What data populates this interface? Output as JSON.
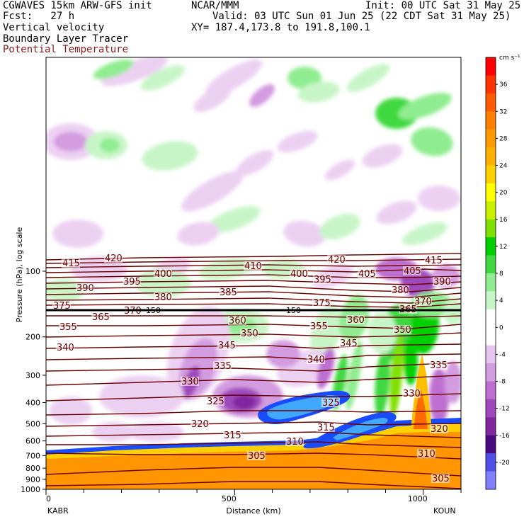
{
  "header": {
    "line1_left": "CGWAVES 15km ARW-GFS init",
    "line1_center": "NCAR/MMM",
    "line1_right": "Init: 00 UTC Sat 31 May 25",
    "line2_left": "Fcst:   27 h",
    "line2_right": "Valid: 03 UTC Sun 01 Jun 25 (22 CDT Sat 31 May 25)",
    "line3_left": "Vertical velocity",
    "line3_right": "XY= 187.4,173.8 to 191.8,100.1",
    "line4_left": "Boundary Layer Tracer",
    "line5_left": "Potential Temperature"
  },
  "chart_data": {
    "type": "heatmap",
    "xlabel": "Distance (km)",
    "ylabel": "Pressure (hPa), log scale",
    "x_ticks": [
      "0",
      "500",
      "1000"
    ],
    "x_tick_values": [
      0,
      500,
      1000
    ],
    "xlim": [
      0,
      1100
    ],
    "x_end_labels": {
      "left": "KABR",
      "right": "KOUN"
    },
    "y_ticks": [
      "100",
      "200",
      "300",
      "400",
      "500",
      "600",
      "700",
      "800",
      "900",
      "1000"
    ],
    "y_tick_values": [
      100,
      200,
      300,
      400,
      500,
      600,
      700,
      800,
      900,
      1000
    ],
    "tropopause_marker": {
      "pressure": 150,
      "label": "150"
    },
    "colorbar": {
      "units": "cm s⁻¹",
      "tick_labels": [
        "36",
        "32",
        "28",
        "24",
        "20",
        "16",
        "12",
        "8",
        "4",
        "0",
        "-4",
        "-8",
        "-12",
        "-16",
        "-20"
      ],
      "tick_values": [
        36,
        32,
        28,
        24,
        20,
        16,
        12,
        8,
        4,
        0,
        -4,
        -8,
        -12,
        -16,
        -20
      ],
      "colors": [
        "#ff0000",
        "#ff3300",
        "#ff5a00",
        "#ff8000",
        "#ff9900",
        "#ffb000",
        "#ffd000",
        "#ffff00",
        "#c8f000",
        "#80e000",
        "#00d000",
        "#40d840",
        "#90ec90",
        "#c8f5c8",
        "#ffffff",
        "#ffffff",
        "#e6c6ee",
        "#d39be0",
        "#bd6fd0",
        "#9e48bc",
        "#80279e",
        "#4a0a80",
        "#5050e8",
        "#8080ff"
      ]
    },
    "potential_temperature_labels": [
      "415",
      "420",
      "410",
      "420",
      "415",
      "405",
      "400",
      "405",
      "390",
      "395",
      "395",
      "400",
      "380",
      "390",
      "380",
      "385",
      "375",
      "375",
      "370",
      "370",
      "365",
      "365",
      "360",
      "360",
      "355",
      "355",
      "350",
      "350",
      "340",
      "345",
      "345",
      "340",
      "335",
      "335",
      "330",
      "330",
      "325",
      "325",
      "320",
      "320",
      "315",
      "315",
      "310",
      "310",
      "305",
      "305"
    ],
    "vertical_velocity_regions": [
      {
        "sign": "upward",
        "color": "green",
        "location": "upper troposphere and stratosphere wave trains"
      },
      {
        "sign": "downward",
        "color": "purple",
        "location": "mid-troposphere 300-600 hPa"
      },
      {
        "sign": "tracer",
        "color": "blue",
        "location": "elevated layer near 400-700 hPa"
      },
      {
        "sign": "boundary_layer",
        "color": "orange",
        "location": "below 700 hPa"
      }
    ]
  }
}
